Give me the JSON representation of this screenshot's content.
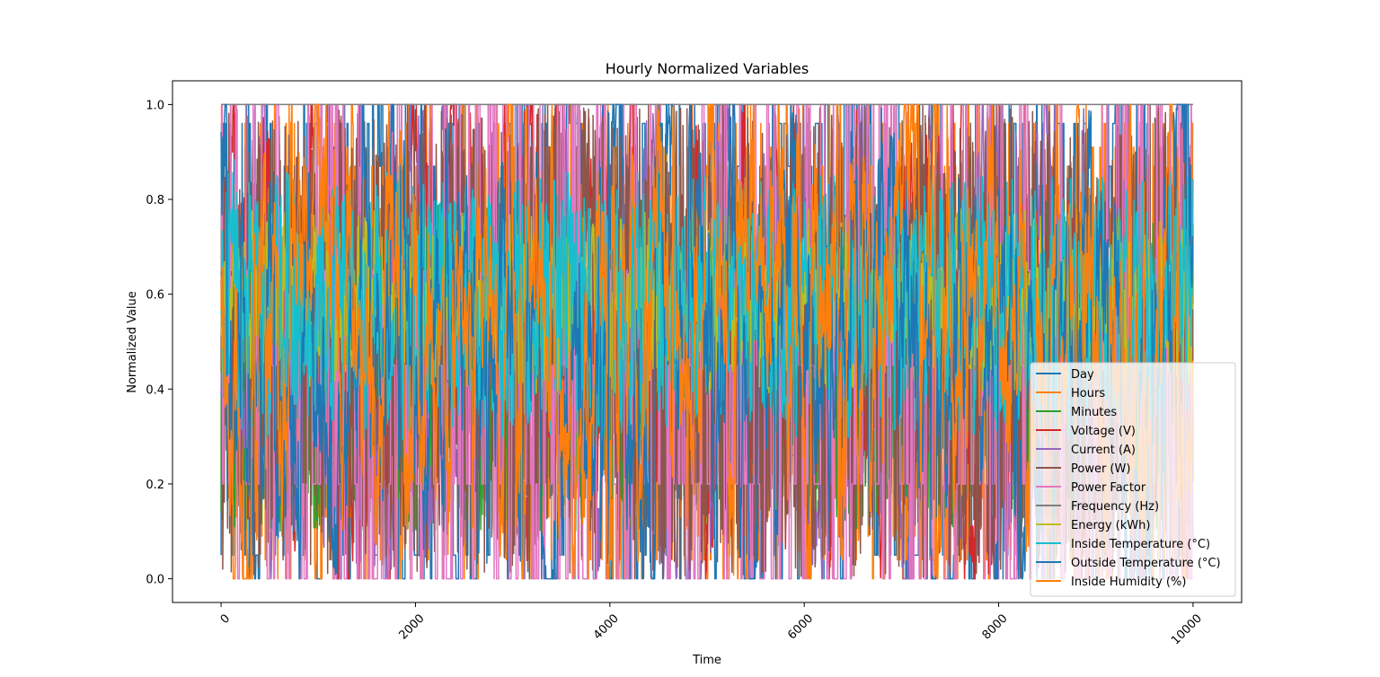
{
  "chart_data": {
    "type": "line",
    "title": "Hourly Normalized Variables",
    "xlabel": "Time",
    "ylabel": "Normalized Value",
    "xlim": [
      -500,
      10500
    ],
    "ylim": [
      -0.05,
      1.05
    ],
    "x_ticks": [
      0,
      2000,
      4000,
      6000,
      8000,
      10000
    ],
    "x_tick_labels": [
      "0",
      "2000",
      "4000",
      "6000",
      "8000",
      "10000"
    ],
    "x_tick_rotation": 45,
    "y_ticks": [
      0.0,
      0.2,
      0.4,
      0.6,
      0.8,
      1.0
    ],
    "y_tick_labels": [
      "0.0",
      "0.2",
      "0.4",
      "0.6",
      "0.8",
      "1.0"
    ],
    "x_range": [
      0,
      10000
    ],
    "grid": false,
    "legend_position": "lower-right",
    "series": [
      {
        "name": "Day",
        "color": "#1f77b4",
        "pattern": "step",
        "levels": [
          0.0,
          0.05,
          0.17,
          0.26,
          0.4,
          0.5,
          0.6,
          0.7,
          0.87,
          0.96,
          1.0
        ],
        "segment_avg": 30
      },
      {
        "name": "Hours",
        "color": "#ff7f0e",
        "pattern": "hourly",
        "levels": [
          0.0,
          0.04,
          0.09,
          0.13,
          0.17,
          0.22,
          0.26,
          0.3,
          0.35,
          0.39,
          0.43,
          0.48,
          0.52,
          0.57,
          0.61,
          0.65,
          0.7,
          0.74,
          0.78,
          0.83,
          0.87,
          0.91,
          0.96,
          1.0
        ],
        "segment_avg": 12
      },
      {
        "name": "Minutes",
        "color": "#2ca02c",
        "pattern": "noise",
        "center": 0.45,
        "spread": 0.35
      },
      {
        "name": "Voltage (V)",
        "color": "#d62728",
        "pattern": "walk",
        "center": 0.55,
        "spread": 0.4
      },
      {
        "name": "Current (A)",
        "color": "#9467bd",
        "pattern": "walk",
        "center": 0.4,
        "spread": 0.3
      },
      {
        "name": "Power (W)",
        "color": "#8c564b",
        "pattern": "spiky",
        "low": 0.0,
        "high": 1.0
      },
      {
        "name": "Power Factor",
        "color": "#e377c2",
        "pattern": "block",
        "levels": [
          0.0,
          0.2,
          0.45,
          0.65,
          1.0
        ]
      },
      {
        "name": "Frequency (Hz)",
        "color": "#7f7f7f",
        "pattern": "constant",
        "value": 1.0
      },
      {
        "name": "Energy (kWh)",
        "color": "#bcbd22",
        "pattern": "band",
        "levels": [
          0.5,
          0.55,
          0.6,
          0.67
        ]
      },
      {
        "name": "Inside Temperature (°C)",
        "color": "#17becf",
        "pattern": "band",
        "levels": [
          0.4,
          0.45,
          0.6,
          0.7,
          0.75
        ]
      },
      {
        "name": "Outside Temperature (°C)",
        "color": "#1f77b4",
        "pattern": "walk",
        "center": 0.45,
        "spread": 0.35
      },
      {
        "name": "Inside Humidity (%)",
        "color": "#ff7f0e",
        "pattern": "walk",
        "center": 0.5,
        "spread": 0.45
      }
    ]
  }
}
